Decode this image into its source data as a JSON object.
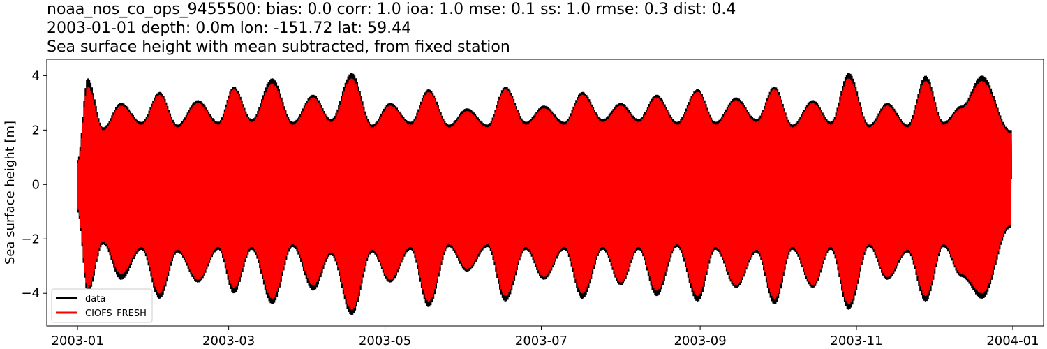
{
  "chart_data": {
    "type": "line",
    "title_lines": [
      "noaa_nos_co_ops_9455500: bias: 0.0  corr: 1.0  ioa: 1.0  mse: 0.1  ss: 1.0  rmse: 0.3  dist: 0.4",
      "2003-01-01 depth: 0.0m lon: -151.72 lat: 59.44",
      "Sea surface height with mean subtracted, from fixed station"
    ],
    "ylabel": "Sea surface height [m]",
    "xlabel": "",
    "xlim": [
      "2002-12-20",
      "2004-01-13"
    ],
    "ylim": [
      -5.2,
      4.6
    ],
    "x_ticks": [
      "2003-01",
      "2003-03",
      "2003-05",
      "2003-07",
      "2003-09",
      "2003-11",
      "2004-01"
    ],
    "y_ticks": [
      -4,
      -2,
      0,
      2,
      4
    ],
    "y_tick_labels": [
      "−4",
      "−2",
      "0",
      "2",
      "4"
    ],
    "legend_position": "lower-left",
    "series": [
      {
        "name": "data",
        "color": "#000000",
        "envelope": {
          "dates": [
            "2003-01-01",
            "2003-01-05",
            "2003-01-11",
            "2003-01-18",
            "2003-01-26",
            "2003-02-02",
            "2003-02-09",
            "2003-02-17",
            "2003-02-25",
            "2003-03-03",
            "2003-03-10",
            "2003-03-18",
            "2003-03-26",
            "2003-04-03",
            "2003-04-10",
            "2003-04-18",
            "2003-04-26",
            "2003-05-03",
            "2003-05-11",
            "2003-05-18",
            "2003-05-26",
            "2003-06-02",
            "2003-06-10",
            "2003-06-17",
            "2003-06-25",
            "2003-07-02",
            "2003-07-10",
            "2003-07-17",
            "2003-07-25",
            "2003-08-01",
            "2003-08-08",
            "2003-08-15",
            "2003-08-23",
            "2003-08-31",
            "2003-09-07",
            "2003-09-15",
            "2003-09-23",
            "2003-09-30",
            "2003-10-07",
            "2003-10-15",
            "2003-10-22",
            "2003-10-29",
            "2003-11-06",
            "2003-11-13",
            "2003-11-21",
            "2003-11-28",
            "2003-12-05",
            "2003-12-12",
            "2003-12-20",
            "2003-12-31"
          ],
          "high": [
            0.9,
            3.9,
            2.1,
            3.0,
            2.3,
            3.4,
            2.2,
            3.1,
            2.3,
            3.6,
            2.4,
            3.9,
            2.3,
            3.3,
            2.4,
            4.1,
            2.2,
            3.0,
            2.3,
            3.5,
            2.2,
            2.8,
            2.2,
            3.6,
            2.3,
            2.9,
            2.3,
            3.4,
            2.4,
            3.0,
            2.4,
            3.3,
            2.3,
            3.5,
            2.3,
            3.2,
            2.4,
            3.6,
            2.2,
            3.1,
            2.3,
            4.1,
            2.2,
            3.0,
            2.2,
            4.0,
            2.3,
            2.9,
            4.0,
            2.0
          ],
          "low": [
            -1.0,
            -4.0,
            -2.2,
            -3.5,
            -2.4,
            -4.2,
            -2.5,
            -3.6,
            -2.4,
            -4.0,
            -2.4,
            -4.4,
            -2.3,
            -3.9,
            -2.6,
            -4.8,
            -2.5,
            -3.6,
            -2.4,
            -4.5,
            -2.3,
            -3.2,
            -2.3,
            -4.3,
            -2.4,
            -3.5,
            -2.4,
            -4.2,
            -2.4,
            -3.7,
            -2.4,
            -4.1,
            -2.3,
            -4.3,
            -2.4,
            -3.8,
            -2.5,
            -4.4,
            -2.4,
            -3.8,
            -2.4,
            -4.6,
            -2.3,
            -3.5,
            -2.5,
            -4.3,
            -2.3,
            -3.4,
            -4.2,
            -1.6
          ]
        }
      },
      {
        "name": "CIOFS_FRESH",
        "color": "#ff0000",
        "envelope": {
          "dates": [
            "2003-01-01",
            "2003-01-05",
            "2003-01-11",
            "2003-01-18",
            "2003-01-26",
            "2003-02-02",
            "2003-02-09",
            "2003-02-17",
            "2003-02-25",
            "2003-03-03",
            "2003-03-10",
            "2003-03-18",
            "2003-03-26",
            "2003-04-03",
            "2003-04-10",
            "2003-04-18",
            "2003-04-26",
            "2003-05-03",
            "2003-05-11",
            "2003-05-18",
            "2003-05-26",
            "2003-06-02",
            "2003-06-10",
            "2003-06-17",
            "2003-06-25",
            "2003-07-02",
            "2003-07-10",
            "2003-07-17",
            "2003-07-25",
            "2003-08-01",
            "2003-08-08",
            "2003-08-15",
            "2003-08-23",
            "2003-08-31",
            "2003-09-07",
            "2003-09-15",
            "2003-09-23",
            "2003-09-30",
            "2003-10-07",
            "2003-10-15",
            "2003-10-22",
            "2003-10-29",
            "2003-11-06",
            "2003-11-13",
            "2003-11-21",
            "2003-11-28",
            "2003-12-05",
            "2003-12-12",
            "2003-12-20",
            "2003-12-31"
          ],
          "high": [
            0.8,
            3.6,
            2.0,
            2.9,
            2.2,
            3.3,
            2.1,
            3.0,
            2.2,
            3.5,
            2.3,
            3.7,
            2.2,
            3.2,
            2.3,
            3.9,
            2.1,
            2.9,
            2.2,
            3.4,
            2.1,
            2.7,
            2.1,
            3.5,
            2.2,
            2.8,
            2.2,
            3.3,
            2.3,
            2.9,
            2.3,
            3.2,
            2.2,
            3.4,
            2.2,
            3.1,
            2.3,
            3.5,
            2.1,
            3.0,
            2.2,
            3.9,
            2.1,
            2.9,
            2.1,
            3.8,
            2.2,
            2.8,
            3.8,
            1.9
          ],
          "low": [
            -0.9,
            -3.8,
            -2.1,
            -3.3,
            -2.3,
            -4.0,
            -2.4,
            -3.5,
            -2.3,
            -3.8,
            -2.3,
            -4.2,
            -2.2,
            -3.7,
            -2.5,
            -4.6,
            -2.4,
            -3.5,
            -2.3,
            -4.3,
            -2.2,
            -3.1,
            -2.2,
            -4.1,
            -2.3,
            -3.4,
            -2.3,
            -4.0,
            -2.3,
            -3.6,
            -2.3,
            -3.9,
            -2.2,
            -4.1,
            -2.3,
            -3.7,
            -2.4,
            -4.2,
            -2.3,
            -3.7,
            -2.3,
            -4.4,
            -2.2,
            -3.4,
            -2.4,
            -4.1,
            -2.2,
            -3.3,
            -4.0,
            -1.5
          ]
        }
      }
    ]
  }
}
